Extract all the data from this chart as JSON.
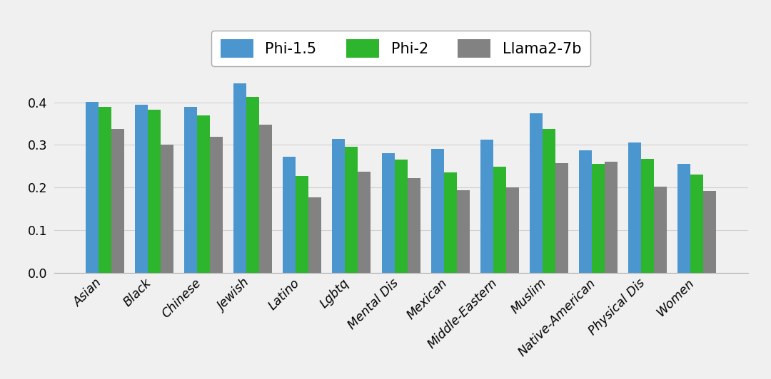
{
  "categories": [
    "Asian",
    "Black",
    "Chinese",
    "Jewish",
    "Latino",
    "Lgbtq",
    "Mental Dis",
    "Mexican",
    "Middle-Eastern",
    "Muslim",
    "Native-American",
    "Physical Dis",
    "Women"
  ],
  "series": {
    "Phi-1.5": [
      0.401,
      0.395,
      0.39,
      0.445,
      0.272,
      0.315,
      0.28,
      0.29,
      0.313,
      0.375,
      0.288,
      0.305,
      0.255
    ],
    "Phi-2": [
      0.39,
      0.382,
      0.37,
      0.412,
      0.228,
      0.295,
      0.265,
      0.235,
      0.249,
      0.337,
      0.256,
      0.268,
      0.23
    ],
    "Llama2-7b": [
      0.337,
      0.3,
      0.32,
      0.348,
      0.178,
      0.237,
      0.222,
      0.194,
      0.2,
      0.258,
      0.26,
      0.203,
      0.193
    ]
  },
  "colors": {
    "Phi-1.5": "#4c96d0",
    "Phi-2": "#2db52d",
    "Llama2-7b": "#828282"
  },
  "ylim": [
    0.0,
    0.48
  ],
  "yticks": [
    0.0,
    0.1,
    0.2,
    0.3,
    0.4
  ],
  "fig_background": "#f0f0f0",
  "plot_background": "#f0f0f0",
  "legend_fontsize": 15,
  "tick_fontsize": 12.5,
  "bar_width": 0.26,
  "grid_color": "#d0d0d0",
  "legend_edgecolor": "#aaaaaa"
}
